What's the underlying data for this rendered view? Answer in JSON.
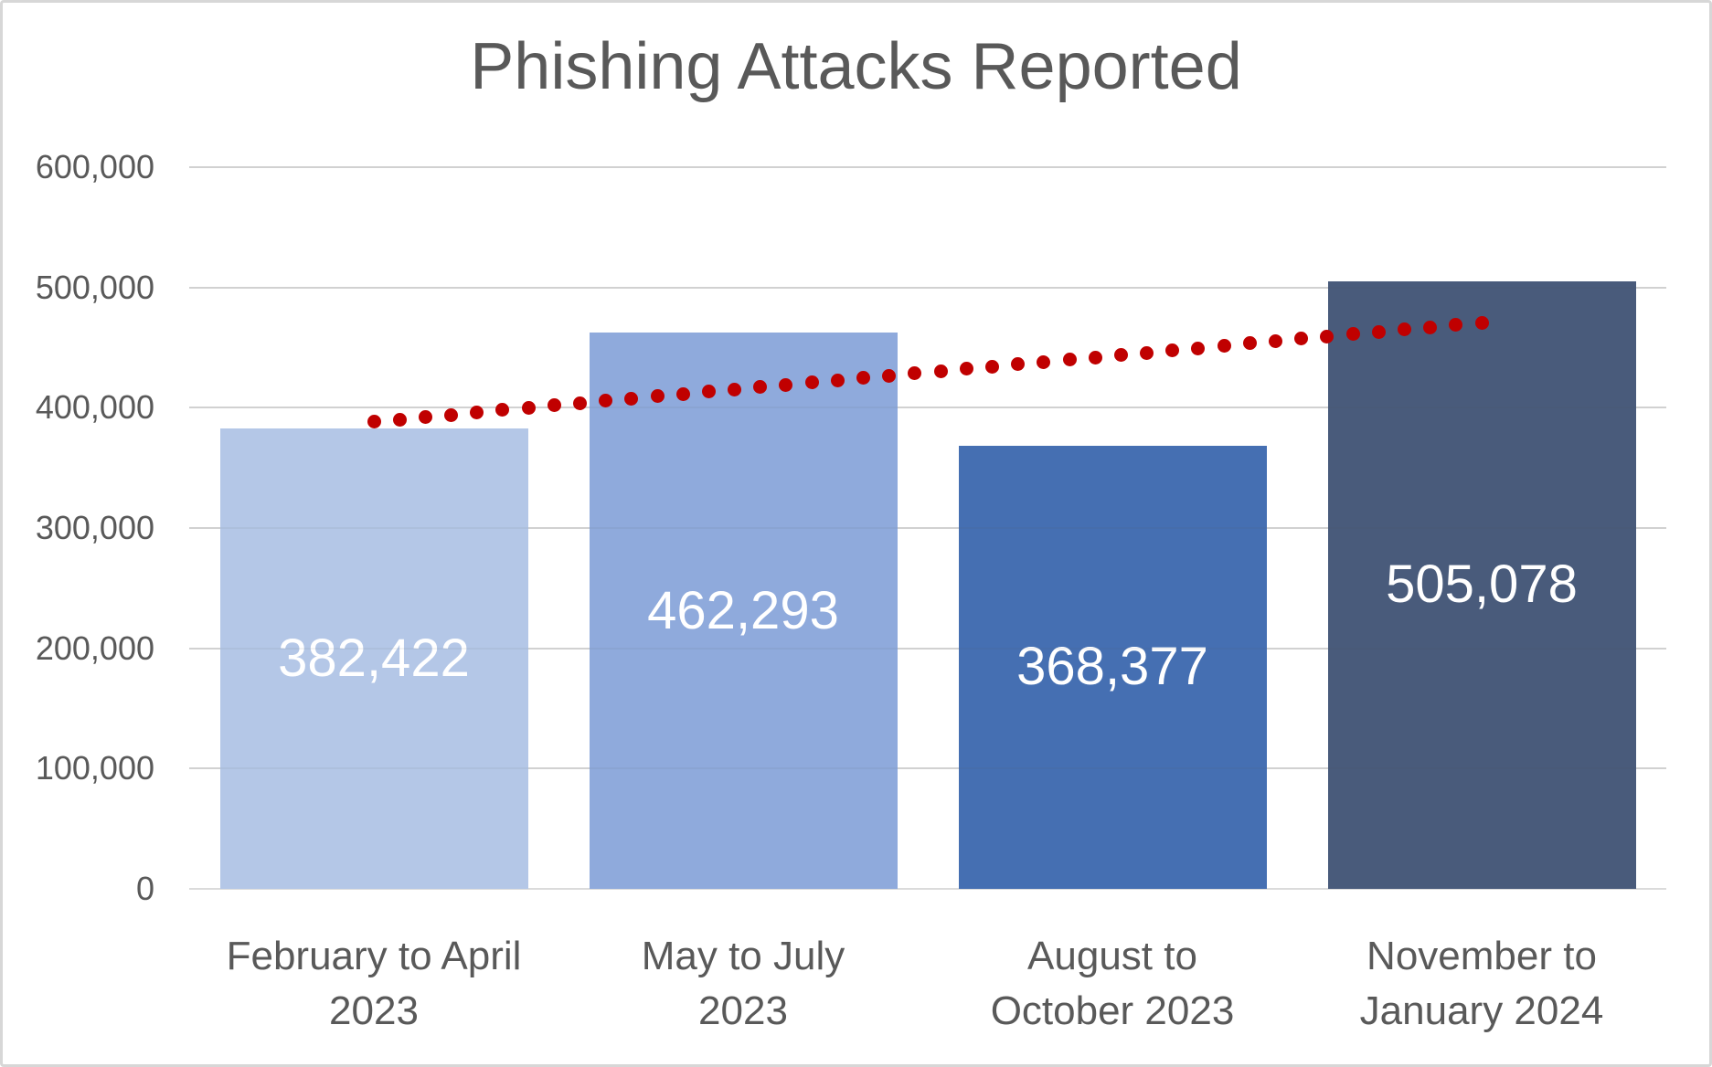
{
  "title": "Phishing Attacks Reported",
  "colors": {
    "background": "#FFFFFF",
    "border": "#D7D7D7",
    "gridline": "#DBDBDB",
    "title_text": "#595959",
    "axis_text": "#595959",
    "value_label_text": "#FFFFFF",
    "trendline": "#C00000"
  },
  "chart_data": {
    "type": "bar",
    "title": "Phishing Attacks Reported",
    "xlabel": "",
    "ylabel": "",
    "grid": true,
    "legend": null,
    "categories": [
      "February to April 2023",
      "May to July 2023",
      "August to October 2023",
      "November to January 2024"
    ],
    "category_label_lines": [
      [
        "February to April",
        "2023"
      ],
      [
        "May to July",
        "2023"
      ],
      [
        "August to",
        "October 2023"
      ],
      [
        "November to",
        "January 2024"
      ]
    ],
    "values": [
      382422,
      462293,
      368377,
      505078
    ],
    "value_labels": [
      "382,422",
      "462,293",
      "368,377",
      "505,078"
    ],
    "bar_colors": [
      "#B4C7E7",
      "#8FAADC",
      "#456FB2",
      "#495B7B"
    ],
    "ylim": [
      0,
      600000
    ],
    "y_axis": {
      "min": 0,
      "max": 600000,
      "tick_step": 100000,
      "ticks": [
        {
          "value": 0,
          "label": "0"
        },
        {
          "value": 100000,
          "label": "100,000"
        },
        {
          "value": 200000,
          "label": "200,000"
        },
        {
          "value": 300000,
          "label": "300,000"
        },
        {
          "value": 400000,
          "label": "400,000"
        },
        {
          "value": 500000,
          "label": "500,000"
        },
        {
          "value": 600000,
          "label": "600,000"
        }
      ]
    },
    "trendline": {
      "type": "linear",
      "style": "dotted",
      "color": "#C00000",
      "start_value": 388435,
      "end_value": 470650
    }
  }
}
